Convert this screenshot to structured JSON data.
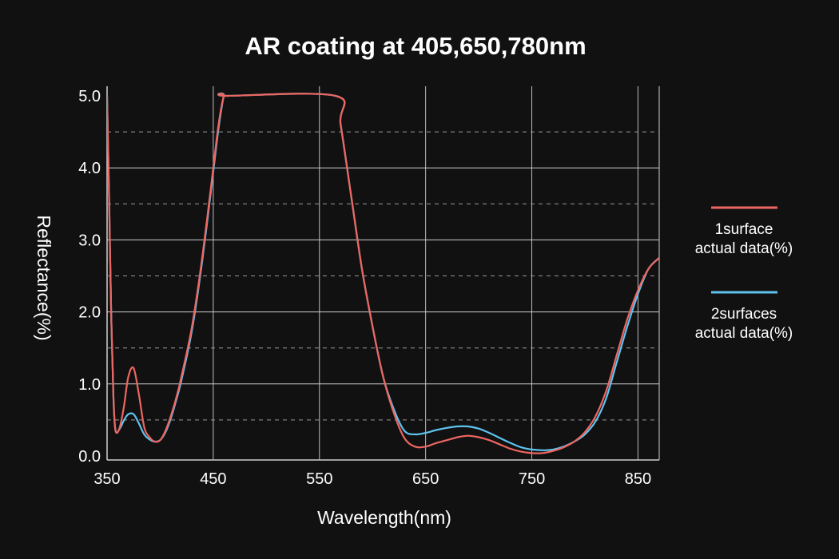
{
  "chart_data": {
    "type": "line",
    "title": "AR coating at 405,650,780nm",
    "xlabel": "Wavelength(nm)",
    "ylabel": "Reflectance(%)",
    "xlim": [
      350,
      870
    ],
    "ylim": [
      0,
      5
    ],
    "xticks": [
      350,
      450,
      550,
      650,
      750,
      850
    ],
    "yticks": [
      0,
      1,
      2,
      3,
      4,
      5
    ],
    "ytick_labels": [
      "0.0",
      "1.0",
      "2.0",
      "3.0",
      "4.0",
      "5.0"
    ],
    "minor_ygrid": [
      0.5,
      1.5,
      2.5,
      3.5,
      4.5
    ],
    "grid": true,
    "legend_position": "right",
    "series": [
      {
        "name": "1surface\nactual data(%)",
        "color": "#ee6661",
        "x": [
          350,
          352,
          354,
          356,
          358,
          362,
          366,
          370,
          375,
          380,
          385,
          390,
          395,
          400,
          405,
          410,
          415,
          420,
          430,
          440,
          450,
          455,
          460,
          463,
          565,
          570,
          580,
          590,
          600,
          610,
          620,
          630,
          640,
          650,
          660,
          670,
          680,
          690,
          700,
          710,
          720,
          730,
          740,
          750,
          760,
          770,
          780,
          790,
          800,
          810,
          820,
          830,
          840,
          850,
          860,
          870
        ],
        "y": [
          5.0,
          3.5,
          1.9,
          0.8,
          0.35,
          0.4,
          0.7,
          1.1,
          1.22,
          0.85,
          0.4,
          0.26,
          0.2,
          0.22,
          0.35,
          0.55,
          0.8,
          1.1,
          1.8,
          2.8,
          4.0,
          4.6,
          5.0,
          5.0,
          5.0,
          4.6,
          3.6,
          2.6,
          1.8,
          1.1,
          0.6,
          0.25,
          0.13,
          0.13,
          0.18,
          0.22,
          0.26,
          0.28,
          0.26,
          0.22,
          0.16,
          0.1,
          0.06,
          0.04,
          0.04,
          0.07,
          0.12,
          0.2,
          0.33,
          0.55,
          0.9,
          1.4,
          1.9,
          2.3,
          2.6,
          2.75
        ]
      },
      {
        "name": "2surfaces\nactual data(%)",
        "color": "#5fc3ef",
        "x": [
          350,
          352,
          354,
          356,
          358,
          362,
          366,
          370,
          375,
          380,
          385,
          390,
          395,
          400,
          405,
          410,
          415,
          420,
          430,
          440,
          450,
          455,
          460,
          463,
          565,
          570,
          580,
          590,
          600,
          610,
          620,
          630,
          640,
          650,
          660,
          670,
          680,
          690,
          700,
          710,
          720,
          730,
          740,
          750,
          760,
          770,
          780,
          790,
          800,
          810,
          820,
          830,
          840,
          850,
          860,
          870
        ],
        "y": [
          5.0,
          3.5,
          1.9,
          0.8,
          0.35,
          0.38,
          0.5,
          0.58,
          0.58,
          0.45,
          0.3,
          0.23,
          0.2,
          0.22,
          0.33,
          0.52,
          0.77,
          1.05,
          1.75,
          2.75,
          3.95,
          4.55,
          5.0,
          5.0,
          5.0,
          4.6,
          3.6,
          2.6,
          1.8,
          1.1,
          0.65,
          0.35,
          0.3,
          0.32,
          0.36,
          0.39,
          0.41,
          0.41,
          0.38,
          0.32,
          0.25,
          0.18,
          0.12,
          0.09,
          0.08,
          0.09,
          0.13,
          0.2,
          0.3,
          0.48,
          0.8,
          1.3,
          1.8,
          2.25,
          2.6,
          2.75
        ]
      }
    ]
  }
}
